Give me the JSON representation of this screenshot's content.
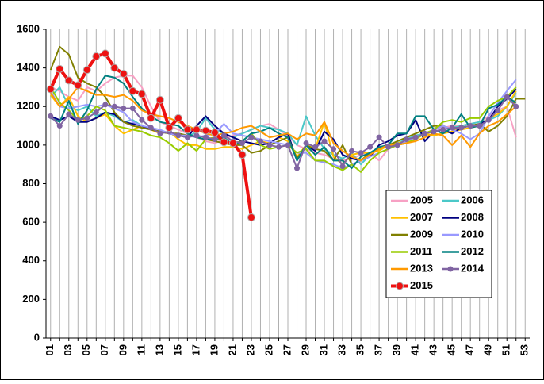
{
  "chart_data": {
    "type": "line",
    "categories": [
      "01",
      null,
      "03",
      null,
      "05",
      null,
      "07",
      null,
      "09",
      null,
      "11",
      null,
      "13",
      null,
      "15",
      null,
      "17",
      null,
      "19",
      null,
      "21",
      null,
      "23",
      null,
      "25",
      null,
      "27",
      null,
      "29",
      null,
      "31",
      null,
      "33",
      null,
      "35",
      null,
      "37",
      null,
      "39",
      null,
      "41",
      null,
      "43",
      null,
      "45",
      null,
      "47",
      null,
      "49",
      null,
      "51",
      null,
      "53"
    ],
    "ylim": [
      0,
      1600
    ],
    "yticks": [
      0,
      200,
      400,
      600,
      800,
      1000,
      1200,
      1400,
      1600
    ],
    "grid": "x",
    "legend": "lower-right",
    "series": [
      {
        "name": "2005",
        "color": "#f7a1c4",
        "values": [
          1300,
          1280,
          1250,
          1230,
          1300,
          1280,
          1320,
          1350,
          1360,
          1360,
          1300,
          1200,
          1120,
          1100,
          1080,
          1060,
          1040,
          1020,
          1010,
          1030,
          1050,
          1060,
          1080,
          1100,
          1110,
          1080,
          1050,
          1000,
          980,
          960,
          950,
          930,
          920,
          930,
          950,
          960,
          920,
          980,
          1000,
          1020,
          1040,
          1060,
          1080,
          1090,
          1100,
          1100,
          1110,
          1120,
          1150,
          1180,
          1200,
          1040,
          null
        ]
      },
      {
        "name": "2006",
        "color": "#4bc8c8",
        "values": [
          1250,
          1300,
          1200,
          1180,
          1200,
          1150,
          1170,
          1150,
          1120,
          1130,
          1100,
          1080,
          1070,
          1060,
          1050,
          1040,
          1070,
          1140,
          1080,
          1060,
          1040,
          1060,
          1080,
          1100,
          1090,
          1080,
          1060,
          1000,
          1150,
          1050,
          980,
          950,
          930,
          960,
          900,
          950,
          980,
          1000,
          1010,
          1030,
          1050,
          1060,
          1070,
          1080,
          1090,
          1100,
          1110,
          1120,
          1130,
          1150,
          1200,
          1270,
          null
        ]
      },
      {
        "name": "2007",
        "color": "#ffc000",
        "values": [
          1260,
          1200,
          1250,
          1150,
          1120,
          1140,
          1160,
          1100,
          1060,
          1080,
          1100,
          1080,
          1060,
          1070,
          1030,
          1000,
          1000,
          980,
          980,
          990,
          990,
          980,
          1000,
          1020,
          1010,
          1040,
          1020,
          940,
          1000,
          980,
          1120,
          940,
          900,
          950,
          960,
          960,
          970,
          1000,
          1010,
          1020,
          1030,
          1060,
          1050,
          1060,
          1070,
          1080,
          1090,
          1100,
          1140,
          1160,
          1200,
          1280,
          null
        ]
      },
      {
        "name": "2008",
        "color": "#000080",
        "values": [
          1150,
          1130,
          1150,
          1120,
          1120,
          1140,
          1170,
          1160,
          1120,
          1110,
          1100,
          1080,
          1070,
          1060,
          1050,
          1040,
          1100,
          1150,
          1100,
          1060,
          1040,
          1020,
          1010,
          1000,
          1010,
          1040,
          1060,
          920,
          1000,
          970,
          1070,
          1030,
          950,
          930,
          920,
          940,
          1000,
          1020,
          1050,
          1060,
          1130,
          1020,
          1070,
          1080,
          1060,
          1090,
          1100,
          1110,
          1130,
          1200,
          1240,
          1290,
          null
        ]
      },
      {
        "name": "2009",
        "color": "#808000",
        "values": [
          1390,
          1510,
          1470,
          1350,
          1320,
          1300,
          1250,
          1170,
          1120,
          1100,
          1090,
          1080,
          1070,
          1060,
          1060,
          1050,
          1040,
          1030,
          1020,
          1010,
          1000,
          1000,
          960,
          970,
          1000,
          1020,
          1040,
          930,
          1000,
          980,
          970,
          920,
          1000,
          900,
          920,
          960,
          980,
          1000,
          1020,
          1040,
          1060,
          1080,
          1100,
          1100,
          1080,
          1090,
          1100,
          1110,
          1070,
          1100,
          1150,
          1240,
          1240
        ]
      },
      {
        "name": "2010",
        "color": "#9999ff",
        "values": [
          1280,
          1200,
          1190,
          1200,
          1210,
          1200,
          1210,
          1190,
          1170,
          1120,
          1100,
          1090,
          1080,
          1060,
          1050,
          1050,
          1040,
          1050,
          1060,
          1110,
          1060,
          1050,
          1040,
          1030,
          1020,
          1010,
          1000,
          960,
          960,
          920,
          910,
          900,
          880,
          900,
          920,
          940,
          960,
          980,
          1000,
          1020,
          1040,
          1060,
          1080,
          1100,
          1080,
          1060,
          1030,
          1060,
          1150,
          1220,
          1280,
          1340,
          null
        ]
      },
      {
        "name": "2011",
        "color": "#99cc00",
        "values": [
          1300,
          1220,
          1180,
          1130,
          1150,
          1200,
          1180,
          1100,
          1090,
          1080,
          1070,
          1050,
          1040,
          1010,
          970,
          1010,
          970,
          1030,
          1040,
          1020,
          1010,
          1020,
          1060,
          1000,
          980,
          990,
          1000,
          960,
          980,
          920,
          920,
          890,
          870,
          900,
          860,
          920,
          960,
          980,
          1000,
          1010,
          1030,
          1060,
          1080,
          1120,
          1130,
          1120,
          1140,
          1140,
          1200,
          1230,
          1250,
          1300,
          null
        ]
      },
      {
        "name": "2012",
        "color": "#008080",
        "values": [
          1140,
          1120,
          1230,
          1110,
          1180,
          1290,
          1360,
          1350,
          1320,
          1250,
          1190,
          1150,
          1120,
          1110,
          1100,
          1060,
          1040,
          1030,
          1030,
          1040,
          1000,
          1020,
          1060,
          1070,
          1090,
          1060,
          1040,
          920,
          1000,
          950,
          990,
          920,
          920,
          880,
          940,
          960,
          990,
          1000,
          1060,
          1060,
          1150,
          1150,
          1080,
          1060,
          1090,
          1160,
          1090,
          1100,
          1190,
          1210,
          1250,
          1220,
          null
        ]
      },
      {
        "name": "2013",
        "color": "#ff9900",
        "values": [
          1270,
          1200,
          1240,
          1300,
          1280,
          1260,
          1260,
          1250,
          1260,
          1230,
          1180,
          1160,
          1150,
          1140,
          1120,
          1100,
          1080,
          1060,
          1050,
          1060,
          1070,
          1090,
          1100,
          1070,
          1040,
          1050,
          1060,
          1030,
          1060,
          1050,
          1120,
          1010,
          970,
          940,
          920,
          950,
          980,
          1000,
          1000,
          1010,
          1020,
          1040,
          1060,
          1050,
          1000,
          1050,
          990,
          1060,
          1100,
          1120,
          1160,
          1200,
          null
        ]
      },
      {
        "name": "2014",
        "color": "#8064a2",
        "markers": true,
        "values": [
          1150,
          1100,
          1160,
          1130,
          1140,
          1170,
          1210,
          1200,
          1190,
          1190,
          1130,
          1090,
          1060,
          1070,
          1050,
          1040,
          1050,
          1040,
          1030,
          1050,
          1020,
          1010,
          1040,
          1020,
          1000,
          990,
          1000,
          880,
          1010,
          990,
          1020,
          980,
          890,
          970,
          960,
          990,
          1040,
          990,
          1000,
          1030,
          1040,
          1060,
          1070,
          1080,
          1090,
          1090,
          1100,
          1100,
          1130,
          1180,
          1250,
          1200,
          null
        ]
      },
      {
        "name": "2015",
        "color": "#ee1111",
        "markers": true,
        "values": [
          1290,
          1395,
          1335,
          1310,
          1390,
          1460,
          1475,
          1400,
          1370,
          1280,
          1265,
          1140,
          1235,
          1090,
          1140,
          1080,
          1080,
          1075,
          1065,
          1015,
          1010,
          950,
          625,
          null,
          null,
          null,
          null,
          null,
          null,
          null,
          null,
          null,
          null,
          null,
          null,
          null,
          null,
          null,
          null,
          null,
          null,
          null,
          null,
          null,
          null,
          null,
          null,
          null,
          null,
          null,
          null,
          null,
          null
        ]
      }
    ]
  }
}
